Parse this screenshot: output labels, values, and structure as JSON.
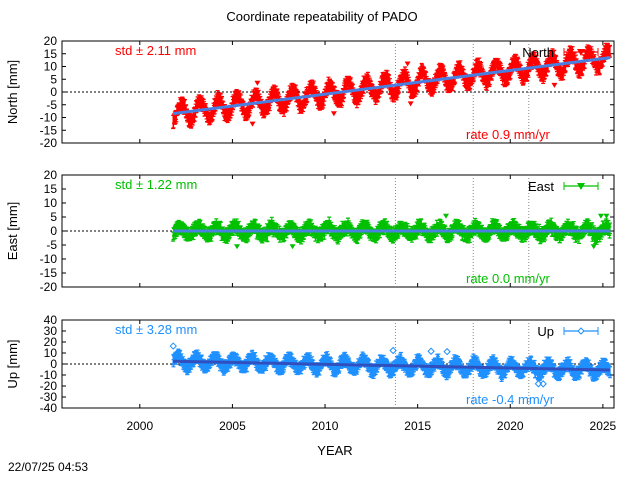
{
  "chart_data": {
    "title": "Coordinate repeatability of PADO",
    "xlabel": "YEAR",
    "x_ticks": [
      2000,
      2005,
      2010,
      2015,
      2020,
      2025
    ],
    "xlim": [
      1995.8,
      2025.6
    ],
    "vertical_dotted_lines": [
      2013.8,
      2018.0,
      2021.0
    ],
    "panels": [
      {
        "type": "scatter",
        "name": "North",
        "ylabel": "North [mm]",
        "ylim": [
          -20,
          20
        ],
        "y_ticks": [
          20,
          15,
          10,
          5,
          0,
          -5,
          -10,
          -15,
          -20
        ],
        "series_color": "#ff0000",
        "trend_color": "#4a7fe0",
        "std_text": "std ± 2.11 mm",
        "rate_text": "rate  0.9 mm/yr",
        "legend_label": "North",
        "legend_marker": "filled-triangle-down",
        "time_range": [
          2001.8,
          2025.4
        ],
        "trend": {
          "start": [
            2001.8,
            -8.5
          ],
          "end": [
            2025.4,
            13.5
          ]
        },
        "seasonal_amplitude_mm": 3.5,
        "errorbar_mm": 2.0
      },
      {
        "type": "scatter",
        "name": "East",
        "ylabel": "East [mm]",
        "ylim": [
          -20,
          20
        ],
        "y_ticks": [
          20,
          15,
          10,
          5,
          0,
          -5,
          -10,
          -15,
          -20
        ],
        "series_color": "#00c000",
        "trend_color": "#4a7fe0",
        "std_text": "std ± 1.22 mm",
        "rate_text": "rate  0.0 mm/yr",
        "legend_label": "East",
        "legend_marker": "filled-triangle-down",
        "time_range": [
          2001.8,
          2025.4
        ],
        "trend": {
          "start": [
            2001.8,
            0.0
          ],
          "end": [
            2025.4,
            0.0
          ]
        },
        "seasonal_amplitude_mm": 1.5,
        "errorbar_mm": 1.8
      },
      {
        "type": "scatter",
        "name": "Up",
        "ylabel": "Up [mm]",
        "ylim": [
          -40,
          40
        ],
        "y_ticks": [
          40,
          30,
          20,
          10,
          0,
          -10,
          -20,
          -30,
          -40
        ],
        "series_color": "#1e90ff",
        "trend_color": "#3050c0",
        "std_text": "std ± 3.28 mm",
        "rate_text": "rate -0.4 mm/yr",
        "legend_label": "Up",
        "legend_marker": "open-diamond",
        "time_range": [
          2001.8,
          2025.4
        ],
        "trend": {
          "start": [
            2001.8,
            2.5
          ],
          "end": [
            2025.4,
            -5.5
          ]
        },
        "seasonal_amplitude_mm": 5.0,
        "errorbar_mm": 4.0
      }
    ]
  },
  "timestamp": "22/07/25 04:53"
}
